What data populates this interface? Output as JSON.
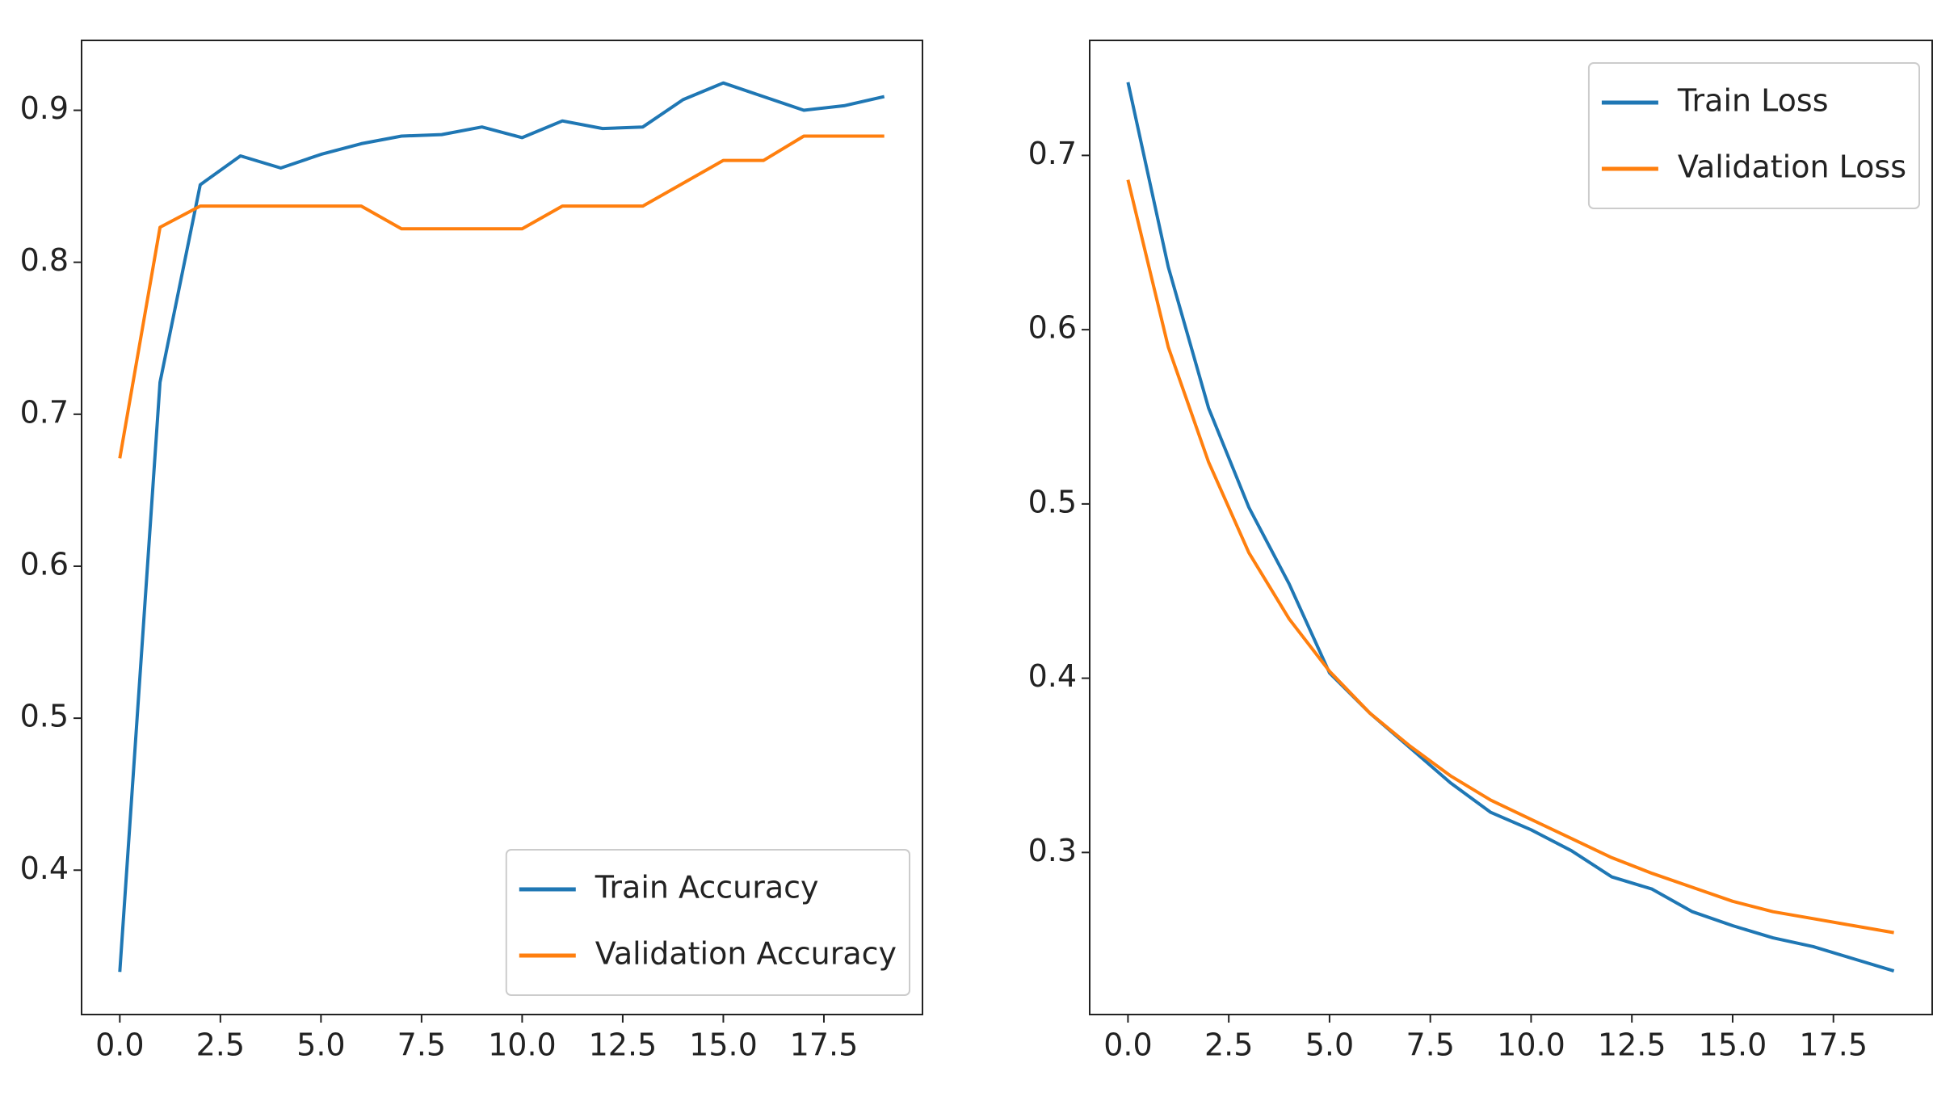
{
  "chart_data": [
    {
      "type": "line",
      "x": [
        0,
        1,
        2,
        3,
        4,
        5,
        6,
        7,
        8,
        9,
        10,
        11,
        12,
        13,
        14,
        15,
        16,
        17,
        18,
        19
      ],
      "series": [
        {
          "name": "Train Accuracy",
          "color": "#1f77b4",
          "values": [
            0.333,
            0.721,
            0.851,
            0.87,
            0.862,
            0.871,
            0.878,
            0.883,
            0.884,
            0.889,
            0.882,
            0.893,
            0.888,
            0.889,
            0.907,
            0.918,
            0.909,
            0.9,
            0.903,
            0.909
          ]
        },
        {
          "name": "Validation Accuracy",
          "color": "#ff7f0e",
          "values": [
            0.671,
            0.823,
            0.837,
            0.837,
            0.837,
            0.837,
            0.837,
            0.822,
            0.822,
            0.822,
            0.822,
            0.837,
            0.837,
            0.837,
            0.852,
            0.867,
            0.867,
            0.883,
            0.883,
            0.883
          ]
        }
      ],
      "xlim": [
        -0.95,
        19.95
      ],
      "xticks": [
        {
          "value": 0,
          "label": "0.0"
        },
        {
          "value": 2.5,
          "label": "2.5"
        },
        {
          "value": 5,
          "label": "5.0"
        },
        {
          "value": 7.5,
          "label": "7.5"
        },
        {
          "value": 10,
          "label": "10.0"
        },
        {
          "value": 12.5,
          "label": "12.5"
        },
        {
          "value": 15,
          "label": "15.0"
        },
        {
          "value": 17.5,
          "label": "17.5"
        }
      ],
      "ylim": [
        0.305,
        0.946
      ],
      "yticks": [
        0.4,
        0.5,
        0.6,
        0.7,
        0.8,
        0.9
      ],
      "legend": "lower right"
    },
    {
      "type": "line",
      "x": [
        0,
        1,
        2,
        3,
        4,
        5,
        6,
        7,
        8,
        9,
        10,
        11,
        12,
        13,
        14,
        15,
        16,
        17,
        18,
        19
      ],
      "series": [
        {
          "name": "Train Loss",
          "color": "#1f77b4",
          "values": [
            0.742,
            0.636,
            0.555,
            0.498,
            0.454,
            0.403,
            0.38,
            0.36,
            0.34,
            0.323,
            0.313,
            0.301,
            0.286,
            0.279,
            0.266,
            0.258,
            0.251,
            0.246,
            0.239,
            0.232
          ]
        },
        {
          "name": "Validation Loss",
          "color": "#ff7f0e",
          "values": [
            0.686,
            0.59,
            0.524,
            0.472,
            0.434,
            0.404,
            0.38,
            0.361,
            0.344,
            0.33,
            0.319,
            0.308,
            0.297,
            0.288,
            0.28,
            0.272,
            0.266,
            0.262,
            0.258,
            0.254
          ]
        }
      ],
      "xlim": [
        -0.95,
        19.95
      ],
      "xticks": [
        {
          "value": 0,
          "label": "0.0"
        },
        {
          "value": 2.5,
          "label": "2.5"
        },
        {
          "value": 5,
          "label": "5.0"
        },
        {
          "value": 7.5,
          "label": "7.5"
        },
        {
          "value": 10,
          "label": "10.0"
        },
        {
          "value": 12.5,
          "label": "12.5"
        },
        {
          "value": 15,
          "label": "15.0"
        },
        {
          "value": 17.5,
          "label": "17.5"
        }
      ],
      "ylim": [
        0.207,
        0.766
      ],
      "yticks": [
        0.3,
        0.4,
        0.5,
        0.6,
        0.7
      ],
      "legend": "upper right"
    }
  ]
}
